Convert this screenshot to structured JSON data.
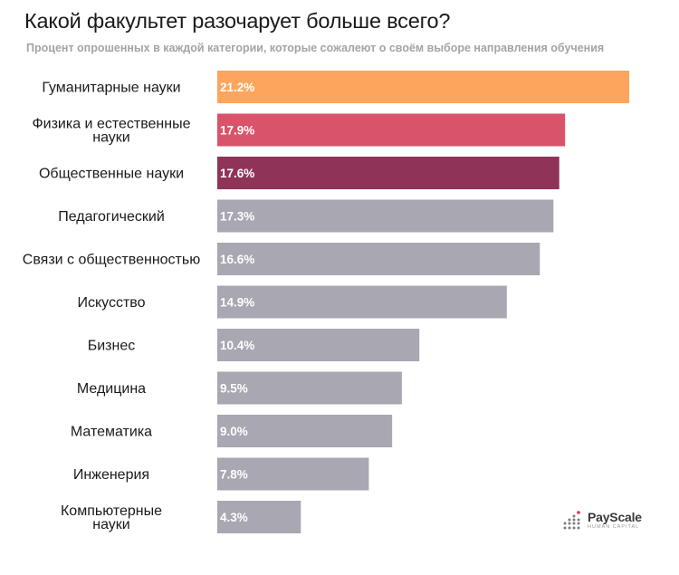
{
  "title": "Какой факультет разочарует больше всего?",
  "subtitle": "Процент опрошенных в каждой категории, которые сожалеют о своём выборе направления обучения",
  "chart_data": {
    "type": "bar",
    "orientation": "horizontal",
    "categories": [
      "Гуманитарные науки",
      "Физика и естественные науки",
      "Общественные науки",
      "Педагогический",
      "Связи с общественностью",
      "Искусство",
      "Бизнес",
      "Медицина",
      "Математика",
      "Инженерия",
      "Компьютерные науки"
    ],
    "category_lines": [
      [
        "Гуманитарные науки"
      ],
      [
        "Физика и естественные",
        "науки"
      ],
      [
        "Общественные науки"
      ],
      [
        "Педагогический"
      ],
      [
        "Связи с общественностью"
      ],
      [
        "Искусство"
      ],
      [
        "Бизнес"
      ],
      [
        "Медицина"
      ],
      [
        "Математика"
      ],
      [
        "Инженерия"
      ],
      [
        "Компьютерные",
        "науки"
      ]
    ],
    "values": [
      21.2,
      17.9,
      17.6,
      17.3,
      16.6,
      14.9,
      10.4,
      9.5,
      9.0,
      7.8,
      4.3
    ],
    "value_labels": [
      "21.2%",
      "17.9%",
      "17.6%",
      "17.3%",
      "16.6%",
      "14.9%",
      "10.4%",
      "9.5%",
      "9.0%",
      "7.8%",
      "4.3%"
    ],
    "colors": [
      "#fca55d",
      "#d9536a",
      "#8f3358",
      "#a8a7b2",
      "#a8a7b2",
      "#a8a7b2",
      "#a8a7b2",
      "#a8a7b2",
      "#a8a7b2",
      "#a8a7b2",
      "#a8a7b2"
    ],
    "xlim": [
      0,
      21.2
    ],
    "grid": false,
    "legend": "none"
  },
  "logo": {
    "name": "PayScale",
    "tagline": "HUMAN CAPITAL"
  }
}
